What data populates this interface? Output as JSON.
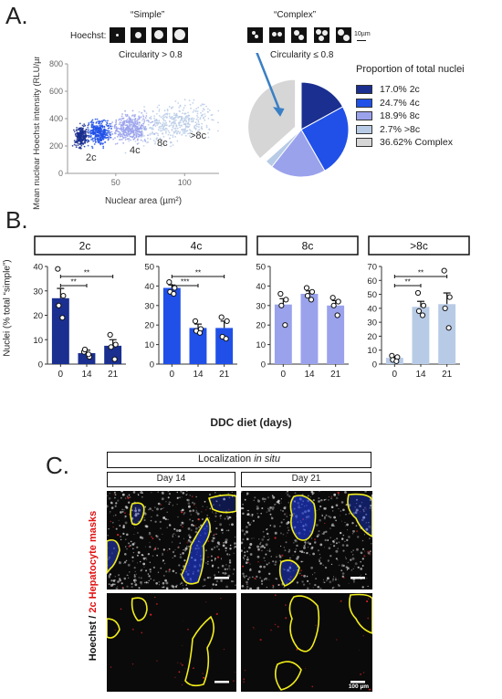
{
  "panel_a": {
    "letter": "A.",
    "simple_label": "“Simple”",
    "complex_label": "“Complex”",
    "hoechst_label": "Hoechst:",
    "circ_simple": "Circularity > 0.8",
    "circ_complex": "Circularity ≤ 0.8",
    "scale_label": "10µm",
    "legend_title": "Proportion of total nuclei"
  },
  "panel_b": {
    "letter": "B.",
    "shared_xlabel": "DDC diet (days)",
    "shared_ylabel": "Nuclei (% total “simple”)"
  },
  "panel_c": {
    "letter": "C.",
    "header_prefix": "Localization ",
    "header_italic": "in situ",
    "day14": "Day 14",
    "day21": "Day 21",
    "side_label_a": "Hoechst / ",
    "side_label_b": "2c Hepatocyte masks",
    "scale_label": "100 µm"
  },
  "colors": {
    "c2": "#1a2f8f",
    "c4": "#2050e8",
    "c8": "#9aa2ec",
    "c8plus": "#b8cbe6",
    "complex": "#d6d6d6",
    "mask": "#f2ee1a",
    "red": "#ff2a2a"
  },
  "chart_data": [
    {
      "type": "scatter",
      "xlabel": "Nuclear area (µm²)",
      "ylabel": "Mean nuclear Hoechst intensity (RLU/µm²)",
      "xticks": [
        "50",
        "100"
      ],
      "yticks": [
        "0",
        "200",
        "400",
        "600",
        "800"
      ],
      "xlim": [
        15,
        125
      ],
      "ylim": [
        0,
        800
      ],
      "cluster_labels": [
        "2c",
        "4c",
        "8c",
        ">8c"
      ]
    },
    {
      "type": "pie",
      "labels": [
        "17.0% 2c",
        "24.7% 4c",
        "18.9% 8c",
        "2.7% >8c",
        "36.62% Complex"
      ],
      "values": [
        17.0,
        24.7,
        18.9,
        2.7,
        36.62
      ]
    },
    {
      "type": "bar",
      "title": "2c",
      "categories": [
        "0",
        "14",
        "21"
      ],
      "values": [
        27,
        4.5,
        7.5
      ],
      "sem": [
        4,
        1.2,
        2.5
      ],
      "points": [
        [
          39,
          28,
          24,
          19
        ],
        [
          5,
          3,
          6,
          4
        ],
        [
          12,
          8,
          7,
          2
        ]
      ],
      "ylim": [
        0,
        40
      ],
      "yticks": [
        "0",
        "10",
        "20",
        "30",
        "40"
      ],
      "significance": [
        {
          "from": 0,
          "to": 1,
          "label": "**"
        },
        {
          "from": 0,
          "to": 2,
          "label": "**"
        }
      ]
    },
    {
      "type": "bar",
      "title": "4c",
      "categories": [
        "0",
        "14",
        "21"
      ],
      "values": [
        39,
        18.5,
        18.5
      ],
      "sem": [
        1.5,
        2,
        3.5
      ],
      "points": [
        [
          42,
          39,
          37,
          36
        ],
        [
          22,
          18,
          17,
          16
        ],
        [
          24,
          22,
          14,
          13
        ]
      ],
      "ylim": [
        0,
        50
      ],
      "yticks": [
        "0",
        "10",
        "20",
        "30",
        "40",
        "50"
      ],
      "significance": [
        {
          "from": 0,
          "to": 1,
          "label": "***"
        },
        {
          "from": 0,
          "to": 2,
          "label": "**"
        }
      ]
    },
    {
      "type": "bar",
      "title": "8c",
      "categories": [
        "0",
        "14",
        "21"
      ],
      "values": [
        30.5,
        36,
        30
      ],
      "sem": [
        3,
        1.5,
        2.5
      ],
      "points": [
        [
          36,
          33,
          30,
          20
        ],
        [
          39,
          37,
          35,
          33
        ],
        [
          34,
          32,
          30,
          25
        ]
      ],
      "ylim": [
        0,
        50
      ],
      "yticks": [
        "0",
        "10",
        "20",
        "30",
        "40",
        "50"
      ],
      "significance": []
    },
    {
      "type": "bar",
      "title": ">8c",
      "categories": [
        "0",
        "14",
        "21"
      ],
      "values": [
        4.5,
        41,
        43
      ],
      "sem": [
        1,
        4,
        8
      ],
      "points": [
        [
          6,
          5,
          3,
          2
        ],
        [
          51,
          42,
          38,
          35
        ],
        [
          67,
          48,
          40,
          26
        ]
      ],
      "ylim": [
        0,
        70
      ],
      "yticks": [
        "0",
        "10",
        "20",
        "30",
        "40",
        "50",
        "60",
        "70"
      ],
      "significance": [
        {
          "from": 0,
          "to": 1,
          "label": "**"
        },
        {
          "from": 0,
          "to": 2,
          "label": "**"
        }
      ]
    }
  ]
}
